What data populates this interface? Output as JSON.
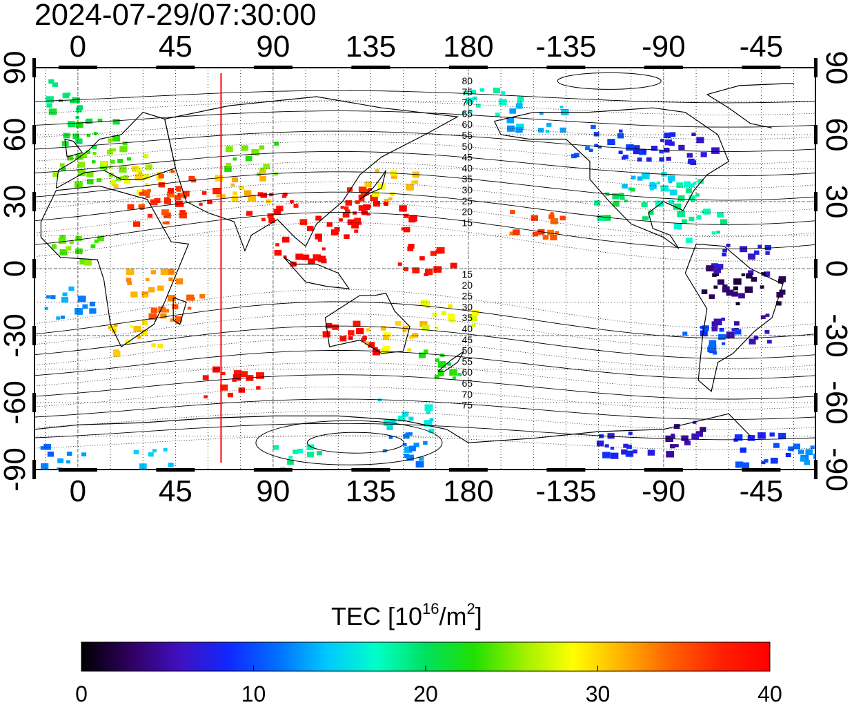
{
  "chart_data": {
    "type": "heatmap",
    "title": "2024-07-29/07:30:00",
    "projection": "equirectangular",
    "x_ticks": [
      "0",
      "45",
      "90",
      "135",
      "180",
      "-135",
      "-90",
      "-45"
    ],
    "y_ticks": [
      "90",
      "60",
      "30",
      "0",
      "-30",
      "-60",
      "-90"
    ],
    "x_tick_values_lon": [
      0,
      45,
      90,
      135,
      180,
      225,
      270,
      315
    ],
    "y_tick_values_lat": [
      90,
      60,
      30,
      0,
      -30,
      -60,
      -90
    ],
    "lon_range": [
      -20,
      340
    ],
    "lat_range": [
      -90,
      90
    ],
    "grid": true,
    "marker_longitude": 66,
    "marker_color": "#ff0000",
    "colorbar": {
      "label_main": "TEC  [10",
      "label_sup1": "16",
      "label_mid": "/m",
      "label_sup2": "2",
      "label_end": "]",
      "min": 0,
      "max": 40,
      "ticks": [
        "0",
        "10",
        "20",
        "30",
        "40"
      ],
      "colors": [
        "#000000",
        "#300060",
        "#4010c0",
        "#1028ff",
        "#0070ff",
        "#00c8ff",
        "#00ffc8",
        "#00e060",
        "#20e000",
        "#a0f000",
        "#ffff00",
        "#ffb000",
        "#ff6000",
        "#ff2000",
        "#ff0000"
      ]
    },
    "contour_labels_north": [
      "80",
      "75",
      "70",
      "65",
      "60",
      "55",
      "50",
      "45",
      "40",
      "35",
      "30",
      "25",
      "20",
      "15"
    ],
    "contour_labels_south": [
      "15",
      "20",
      "25",
      "30",
      "35",
      "40",
      "45",
      "50",
      "55",
      "60",
      "65",
      "70",
      "75"
    ],
    "tec_regions": [
      {
        "lon": -5,
        "lat": 78,
        "tec": 20
      },
      {
        "lon": 5,
        "lat": 62,
        "tec": 21
      },
      {
        "lon": 15,
        "lat": 55,
        "tec": 24
      },
      {
        "lon": 0,
        "lat": 45,
        "tec": 24
      },
      {
        "lon": 20,
        "lat": 45,
        "tec": 26
      },
      {
        "lon": 28,
        "lat": 40,
        "tec": 29
      },
      {
        "lon": 42,
        "lat": 38,
        "tec": 35
      },
      {
        "lon": 50,
        "lat": 32,
        "tec": 38
      },
      {
        "lon": 35,
        "lat": 28,
        "tec": 36
      },
      {
        "lon": 75,
        "lat": 38,
        "tec": 31
      },
      {
        "lon": 78,
        "lat": 50,
        "tec": 24
      },
      {
        "lon": 90,
        "lat": 28,
        "tec": 39
      },
      {
        "lon": 115,
        "lat": 22,
        "tec": 40
      },
      {
        "lon": 130,
        "lat": 30,
        "tec": 38
      },
      {
        "lon": 145,
        "lat": 38,
        "tec": 30
      },
      {
        "lon": 140,
        "lat": 25,
        "tec": 40
      },
      {
        "lon": 100,
        "lat": 10,
        "tec": 40
      },
      {
        "lon": 160,
        "lat": 5,
        "tec": 39
      },
      {
        "lon": -150,
        "lat": 22,
        "tec": 35
      },
      {
        "lon": -170,
        "lat": 75,
        "tec": 17
      },
      {
        "lon": -150,
        "lat": 68,
        "tec": 14
      },
      {
        "lon": -120,
        "lat": 58,
        "tec": 10
      },
      {
        "lon": -100,
        "lat": 55,
        "tec": 8
      },
      {
        "lon": -80,
        "lat": 55,
        "tec": 7
      },
      {
        "lon": -100,
        "lat": 42,
        "tec": 15
      },
      {
        "lon": -85,
        "lat": 35,
        "tec": 18
      },
      {
        "lon": -110,
        "lat": 30,
        "tec": 20
      },
      {
        "lon": -75,
        "lat": 20,
        "tec": 18
      },
      {
        "lon": -55,
        "lat": 5,
        "tec": 7
      },
      {
        "lon": -60,
        "lat": -5,
        "tec": 3
      },
      {
        "lon": -45,
        "lat": -8,
        "tec": 2
      },
      {
        "lon": -55,
        "lat": -25,
        "tec": 6
      },
      {
        "lon": -70,
        "lat": -30,
        "tec": 10
      },
      {
        "lon": -85,
        "lat": -75,
        "tec": 5
      },
      {
        "lon": -45,
        "lat": -80,
        "tec": 9
      },
      {
        "lon": -20,
        "lat": -85,
        "tec": 12
      },
      {
        "lon": -110,
        "lat": -80,
        "tec": 8
      },
      {
        "lon": 150,
        "lat": -80,
        "tec": 12
      },
      {
        "lon": 100,
        "lat": -85,
        "tec": 18
      },
      {
        "lon": 30,
        "lat": -87,
        "tec": 14
      },
      {
        "lon": -10,
        "lat": -88,
        "tec": 12
      },
      {
        "lon": 25,
        "lat": -30,
        "tec": 30
      },
      {
        "lon": 45,
        "lat": -18,
        "tec": 34
      },
      {
        "lon": 35,
        "lat": -5,
        "tec": 32
      },
      {
        "lon": -5,
        "lat": -15,
        "tec": 13
      },
      {
        "lon": 0,
        "lat": 10,
        "tec": 24
      },
      {
        "lon": 125,
        "lat": -30,
        "tec": 39
      },
      {
        "lon": 145,
        "lat": -30,
        "tec": 30
      },
      {
        "lon": 165,
        "lat": -42,
        "tec": 22
      },
      {
        "lon": 170,
        "lat": -20,
        "tec": 28
      },
      {
        "lon": 150,
        "lat": -65,
        "tec": 16
      },
      {
        "lon": 70,
        "lat": -50,
        "tec": 39
      }
    ]
  }
}
